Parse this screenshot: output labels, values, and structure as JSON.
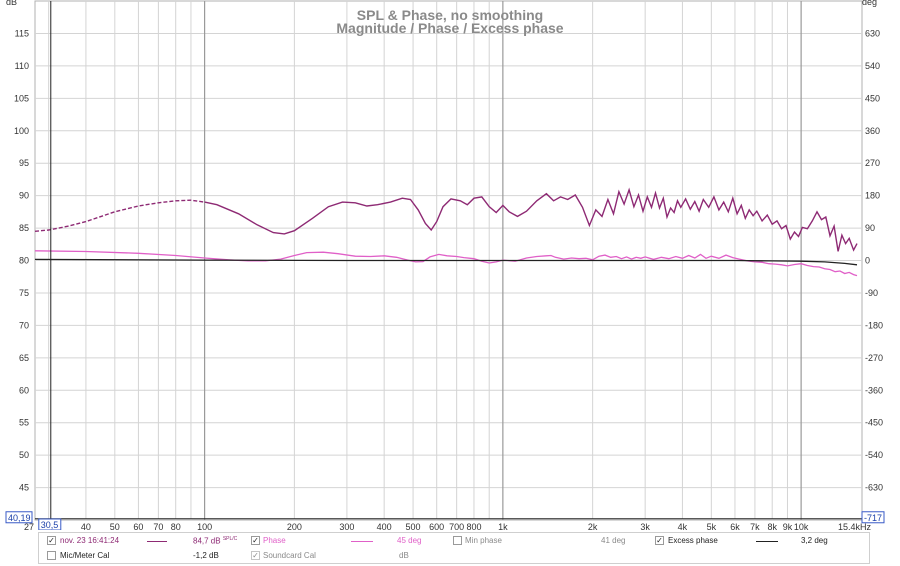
{
  "chart_data": {
    "type": "line",
    "title": "SPL & Phase, no smoothing",
    "subtitle": "Magnitude / Phase / Excess phase",
    "left_unit": "dB",
    "right_unit": "deg",
    "x_scale": "log",
    "xlim": [
      27,
      16000
    ],
    "ylim_left": [
      40,
      120
    ],
    "ylim_right": [
      -720,
      720
    ],
    "x_ticks": [
      {
        "v": 40,
        "label": "40"
      },
      {
        "v": 50,
        "label": "50"
      },
      {
        "v": 60,
        "label": "60"
      },
      {
        "v": 70,
        "label": "70"
      },
      {
        "v": 80,
        "label": "80"
      },
      {
        "v": 100,
        "label": "100"
      },
      {
        "v": 200,
        "label": "200"
      },
      {
        "v": 300,
        "label": "300"
      },
      {
        "v": 400,
        "label": "400"
      },
      {
        "v": 500,
        "label": "500"
      },
      {
        "v": 600,
        "label": "600"
      },
      {
        "v": 700,
        "label": "700"
      },
      {
        "v": 800,
        "label": "800"
      },
      {
        "v": 1000,
        "label": "1k"
      },
      {
        "v": 2000,
        "label": "2k"
      },
      {
        "v": 3000,
        "label": "3k"
      },
      {
        "v": 4000,
        "label": "4k"
      },
      {
        "v": 5000,
        "label": "5k"
      },
      {
        "v": 6000,
        "label": "6k"
      },
      {
        "v": 7000,
        "label": "7k"
      },
      {
        "v": 8000,
        "label": "8k"
      },
      {
        "v": 9000,
        "label": "9k"
      },
      {
        "v": 10000,
        "label": "10k"
      }
    ],
    "x_major": [
      100,
      1000,
      10000
    ],
    "x_start_label": "27",
    "x_end_label": "15,4kHz",
    "left_ticks": [
      115,
      110,
      105,
      100,
      95,
      90,
      85,
      80,
      75,
      70,
      65,
      60,
      55,
      50,
      45
    ],
    "right_ticks": [
      630,
      540,
      450,
      360,
      270,
      180,
      90,
      0,
      -90,
      -180,
      -270,
      -360,
      -450,
      -540,
      -630
    ],
    "cursor": {
      "x_label": "30,5",
      "y_left_label": "40,19",
      "y_right_label": "-717",
      "x": 30.5,
      "y": 40.19
    },
    "grid": true,
    "legend_position": "bottom",
    "series": [
      {
        "axis": "left",
        "color": "#8e2a74",
        "dash_below_hz": 100,
        "points": [
          [
            27,
            84.5
          ],
          [
            30,
            84.7
          ],
          [
            35,
            85.3
          ],
          [
            40,
            86
          ],
          [
            45,
            86.8
          ],
          [
            50,
            87.5
          ],
          [
            60,
            88.4
          ],
          [
            70,
            88.9
          ],
          [
            80,
            89.2
          ],
          [
            90,
            89.3
          ],
          [
            100,
            89
          ],
          [
            110,
            88.6
          ],
          [
            130,
            87.2
          ],
          [
            150,
            85.5
          ],
          [
            170,
            84.3
          ],
          [
            185,
            84.1
          ],
          [
            200,
            84.6
          ],
          [
            230,
            86.5
          ],
          [
            260,
            88.3
          ],
          [
            290,
            89
          ],
          [
            320,
            88.9
          ],
          [
            350,
            88.4
          ],
          [
            380,
            88.6
          ],
          [
            420,
            89
          ],
          [
            460,
            89.6
          ],
          [
            490,
            89.4
          ],
          [
            520,
            87.8
          ],
          [
            550,
            85.7
          ],
          [
            575,
            84.7
          ],
          [
            600,
            86
          ],
          [
            630,
            88.3
          ],
          [
            670,
            89.5
          ],
          [
            720,
            89.2
          ],
          [
            760,
            88.6
          ],
          [
            800,
            89.6
          ],
          [
            850,
            89.8
          ],
          [
            900,
            88.3
          ],
          [
            950,
            87.4
          ],
          [
            1000,
            88.5
          ],
          [
            1050,
            87.5
          ],
          [
            1120,
            86.8
          ],
          [
            1200,
            87.6
          ],
          [
            1300,
            89.2
          ],
          [
            1400,
            90.3
          ],
          [
            1480,
            89.2
          ],
          [
            1560,
            89.8
          ],
          [
            1650,
            89.4
          ],
          [
            1750,
            90.1
          ],
          [
            1850,
            88.2
          ],
          [
            1950,
            85.4
          ],
          [
            2050,
            87.8
          ],
          [
            2150,
            86.8
          ],
          [
            2250,
            89.4
          ],
          [
            2350,
            87.2
          ],
          [
            2450,
            90.6
          ],
          [
            2550,
            88.7
          ],
          [
            2650,
            90.9
          ],
          [
            2750,
            88.3
          ],
          [
            2850,
            90.1
          ],
          [
            2950,
            87.6
          ],
          [
            3050,
            89.8
          ],
          [
            3150,
            88.2
          ],
          [
            3250,
            90.4
          ],
          [
            3350,
            88.1
          ],
          [
            3450,
            89.6
          ],
          [
            3550,
            86.7
          ],
          [
            3650,
            88.1
          ],
          [
            3750,
            87.4
          ],
          [
            3850,
            89.2
          ],
          [
            3950,
            88.2
          ],
          [
            4100,
            89.5
          ],
          [
            4250,
            87.9
          ],
          [
            4400,
            89.1
          ],
          [
            4550,
            87.6
          ],
          [
            4700,
            89.4
          ],
          [
            4900,
            88.2
          ],
          [
            5100,
            89.8
          ],
          [
            5300,
            87.8
          ],
          [
            5500,
            89
          ],
          [
            5700,
            87.5
          ],
          [
            5900,
            89.6
          ],
          [
            6100,
            87.2
          ],
          [
            6300,
            88.5
          ],
          [
            6500,
            86.5
          ],
          [
            6700,
            87.8
          ],
          [
            6900,
            86.9
          ],
          [
            7100,
            87.6
          ],
          [
            7400,
            86.1
          ],
          [
            7700,
            87
          ],
          [
            8000,
            85.6
          ],
          [
            8300,
            86.1
          ],
          [
            8600,
            84.9
          ],
          [
            8900,
            85.4
          ],
          [
            9200,
            83.3
          ],
          [
            9500,
            84.4
          ],
          [
            9800,
            83.7
          ],
          [
            10100,
            85.1
          ],
          [
            10500,
            84.9
          ],
          [
            10900,
            86.1
          ],
          [
            11300,
            87.5
          ],
          [
            11700,
            86.3
          ],
          [
            12100,
            86.7
          ],
          [
            12500,
            83.8
          ],
          [
            12900,
            85.3
          ],
          [
            13300,
            81.4
          ],
          [
            13700,
            83.9
          ],
          [
            14100,
            82.6
          ],
          [
            14500,
            83.4
          ],
          [
            15000,
            81.6
          ],
          [
            15400,
            82.6
          ]
        ]
      },
      {
        "axis": "right",
        "color": "#e060c8",
        "points": [
          [
            27,
            27
          ],
          [
            40,
            25
          ],
          [
            60,
            20
          ],
          [
            80,
            14
          ],
          [
            100,
            7
          ],
          [
            120,
            2
          ],
          [
            140,
            -1
          ],
          [
            160,
            -1
          ],
          [
            180,
            4
          ],
          [
            200,
            14
          ],
          [
            220,
            22
          ],
          [
            250,
            23
          ],
          [
            280,
            19
          ],
          [
            320,
            12
          ],
          [
            360,
            11
          ],
          [
            400,
            13
          ],
          [
            440,
            9
          ],
          [
            480,
            1
          ],
          [
            510,
            -4
          ],
          [
            540,
            -3
          ],
          [
            570,
            10
          ],
          [
            610,
            17
          ],
          [
            650,
            13
          ],
          [
            700,
            11
          ],
          [
            740,
            8
          ],
          [
            800,
            5
          ],
          [
            850,
            -2
          ],
          [
            900,
            -7
          ],
          [
            950,
            -4
          ],
          [
            1000,
            1
          ],
          [
            1100,
            -2
          ],
          [
            1200,
            7
          ],
          [
            1300,
            11
          ],
          [
            1400,
            13
          ],
          [
            1450,
            14
          ],
          [
            1500,
            9
          ],
          [
            1600,
            4
          ],
          [
            1700,
            7
          ],
          [
            1800,
            5
          ],
          [
            1900,
            6
          ],
          [
            2000,
            2
          ],
          [
            2100,
            12
          ],
          [
            2200,
            15
          ],
          [
            2300,
            9
          ],
          [
            2400,
            11
          ],
          [
            2500,
            5
          ],
          [
            2600,
            10
          ],
          [
            2700,
            4
          ],
          [
            2800,
            9
          ],
          [
            2900,
            6
          ],
          [
            3000,
            10
          ],
          [
            3200,
            3
          ],
          [
            3400,
            9
          ],
          [
            3600,
            5
          ],
          [
            3800,
            11
          ],
          [
            4000,
            6
          ],
          [
            4200,
            14
          ],
          [
            4400,
            7
          ],
          [
            4600,
            17
          ],
          [
            4800,
            6
          ],
          [
            5000,
            12
          ],
          [
            5300,
            6
          ],
          [
            5600,
            15
          ],
          [
            5900,
            8
          ],
          [
            6200,
            4
          ],
          [
            6600,
            -1
          ],
          [
            7000,
            -4
          ],
          [
            7400,
            -5
          ],
          [
            7800,
            -9
          ],
          [
            8200,
            -10
          ],
          [
            8600,
            -12
          ],
          [
            9000,
            -15
          ],
          [
            9500,
            -11
          ],
          [
            10000,
            -9
          ],
          [
            10500,
            -14
          ],
          [
            11000,
            -17
          ],
          [
            11500,
            -18
          ],
          [
            12000,
            -23
          ],
          [
            12500,
            -25
          ],
          [
            13000,
            -31
          ],
          [
            13500,
            -29
          ],
          [
            14000,
            -36
          ],
          [
            14500,
            -33
          ],
          [
            15000,
            -39
          ],
          [
            15400,
            -42
          ]
        ]
      },
      {
        "axis": "right",
        "color": "#222222",
        "points": [
          [
            27,
            3
          ],
          [
            100,
            1
          ],
          [
            300,
            0
          ],
          [
            1000,
            0
          ],
          [
            3000,
            0
          ],
          [
            6000,
            0
          ],
          [
            8000,
            -1
          ],
          [
            10000,
            -2
          ],
          [
            12000,
            -4
          ],
          [
            14000,
            -8
          ],
          [
            15400,
            -12
          ]
        ]
      }
    ]
  },
  "legend": {
    "row1": {
      "checkbox": "✓",
      "measurement": "nov. 23 16:41:24",
      "magnitude_value": "84,7 dB",
      "magnitude_unit": "SPL/C",
      "phase_checkbox": "✓",
      "phase_label": "Phase",
      "phase_value": "45 deg",
      "min_phase_label": "Min phase",
      "min_phase_value": "41 deg",
      "excess_checkbox": "✓",
      "excess_label": "Excess phase",
      "excess_value": "3,2 deg"
    },
    "row2": {
      "mic_label": "Mic/Meter Cal",
      "mic_value": "-1,2 dB",
      "soundcard_checkbox": "✓",
      "soundcard_label": "Soundcard Cal",
      "soundcard_unit": "dB"
    },
    "colors": {
      "magnitude": "#8e2a74",
      "phase": "#e060c8",
      "excess": "#222222"
    }
  }
}
